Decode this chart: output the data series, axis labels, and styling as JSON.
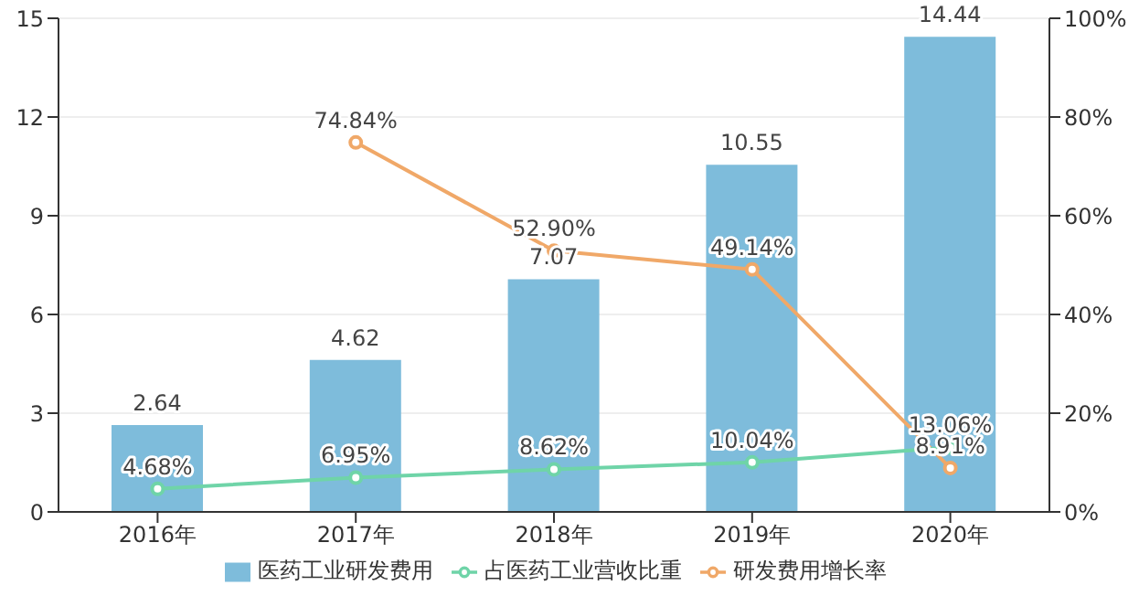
{
  "chart_data": {
    "type": "bar",
    "categories": [
      "2016年",
      "2017年",
      "2018年",
      "2019年",
      "2020年"
    ],
    "series": [
      {
        "name": "医药工业研发费用",
        "color": "#7ebcdb",
        "values": [
          2.64,
          4.62,
          7.07,
          10.55,
          14.44
        ],
        "value_labels": [
          "2.64",
          "4.62",
          "7.07",
          "10.55",
          "14.44"
        ]
      },
      {
        "name": "研发费用增长率",
        "type": "line",
        "axis": "y2",
        "color": "#f0a868",
        "values": [
          null,
          74.84,
          52.9,
          49.14,
          8.91
        ],
        "value_labels": [
          null,
          "74.84%",
          "52.90%",
          "49.14%",
          "8.91%"
        ]
      },
      {
        "name": "占医药工业营收比重",
        "type": "line",
        "axis": "y2",
        "color": "#6fd4a8",
        "values": [
          4.68,
          6.95,
          8.62,
          10.04,
          13.06
        ],
        "value_labels": [
          "4.68%",
          "6.95%",
          "8.62%",
          "10.04%",
          "13.06%"
        ]
      }
    ],
    "ylim": [
      0,
      15
    ],
    "yticks": [
      0,
      3,
      6,
      9,
      12,
      15
    ],
    "y2lim": [
      0,
      100
    ],
    "y2ticks": [
      {
        "value": 0,
        "label": "0%"
      },
      {
        "value": 20,
        "label": "20%"
      },
      {
        "value": 40,
        "label": "40%"
      },
      {
        "value": 60,
        "label": "60%"
      },
      {
        "value": 80,
        "label": "80%"
      },
      {
        "value": 100,
        "label": "100%"
      }
    ],
    "grid": "y",
    "legend": "bottom",
    "marker": "circle"
  }
}
